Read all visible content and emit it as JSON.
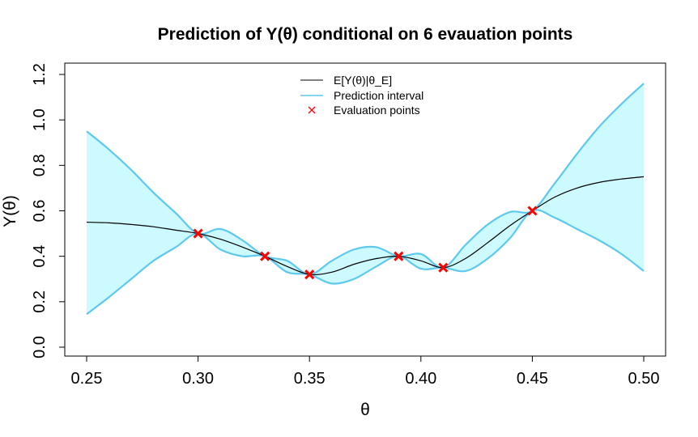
{
  "chart_data": {
    "type": "line",
    "title": "Prediction of Y(θ) conditional on 6 evauation points",
    "xlabel": "θ",
    "ylabel": "Y(θ)",
    "xlim": [
      0.25,
      0.5
    ],
    "ylim": [
      0.0,
      1.2
    ],
    "x_ticks": [
      "0.25",
      "0.30",
      "0.35",
      "0.40",
      "0.45",
      "0.50"
    ],
    "y_ticks": [
      "0.0",
      "0.2",
      "0.4",
      "0.6",
      "0.8",
      "1.0",
      "1.2"
    ],
    "legend": {
      "position": "top-center",
      "entries": [
        "E[Y(θ)|θ_E]",
        "Prediction interval",
        "Evaluation points"
      ]
    },
    "colors": {
      "mean": "#000000",
      "interval_line": "#5ec8ee",
      "interval_fill": "#ccfaff",
      "points": "#ff0000"
    },
    "series": [
      {
        "name": "E[Y(θ)|θ_E]",
        "x": [
          0.25,
          0.26,
          0.27,
          0.28,
          0.29,
          0.3,
          0.31,
          0.32,
          0.33,
          0.34,
          0.35,
          0.36,
          0.37,
          0.38,
          0.39,
          0.4,
          0.41,
          0.42,
          0.43,
          0.44,
          0.45,
          0.46,
          0.47,
          0.48,
          0.49,
          0.5
        ],
        "y": [
          0.55,
          0.547,
          0.54,
          0.53,
          0.515,
          0.5,
          0.475,
          0.44,
          0.4,
          0.355,
          0.32,
          0.33,
          0.365,
          0.39,
          0.4,
          0.38,
          0.35,
          0.39,
          0.46,
          0.535,
          0.6,
          0.66,
          0.7,
          0.725,
          0.74,
          0.75
        ]
      },
      {
        "name": "Prediction interval",
        "x": [
          0.25,
          0.26,
          0.27,
          0.28,
          0.29,
          0.3,
          0.31,
          0.32,
          0.33,
          0.34,
          0.35,
          0.36,
          0.37,
          0.38,
          0.39,
          0.4,
          0.41,
          0.42,
          0.43,
          0.44,
          0.45,
          0.46,
          0.47,
          0.48,
          0.49,
          0.5
        ],
        "upper": [
          0.95,
          0.87,
          0.78,
          0.68,
          0.59,
          0.5,
          0.52,
          0.47,
          0.4,
          0.38,
          0.32,
          0.38,
          0.43,
          0.44,
          0.4,
          0.41,
          0.35,
          0.45,
          0.54,
          0.595,
          0.6,
          0.72,
          0.85,
          0.97,
          1.07,
          1.16
        ],
        "lower": [
          0.145,
          0.22,
          0.3,
          0.38,
          0.44,
          0.5,
          0.43,
          0.4,
          0.4,
          0.33,
          0.32,
          0.28,
          0.3,
          0.355,
          0.4,
          0.345,
          0.35,
          0.335,
          0.39,
          0.48,
          0.6,
          0.57,
          0.52,
          0.47,
          0.41,
          0.335
        ]
      },
      {
        "name": "Evaluation points",
        "x": [
          0.3,
          0.33,
          0.35,
          0.39,
          0.41,
          0.45
        ],
        "y": [
          0.5,
          0.4,
          0.32,
          0.4,
          0.35,
          0.6
        ]
      }
    ]
  }
}
